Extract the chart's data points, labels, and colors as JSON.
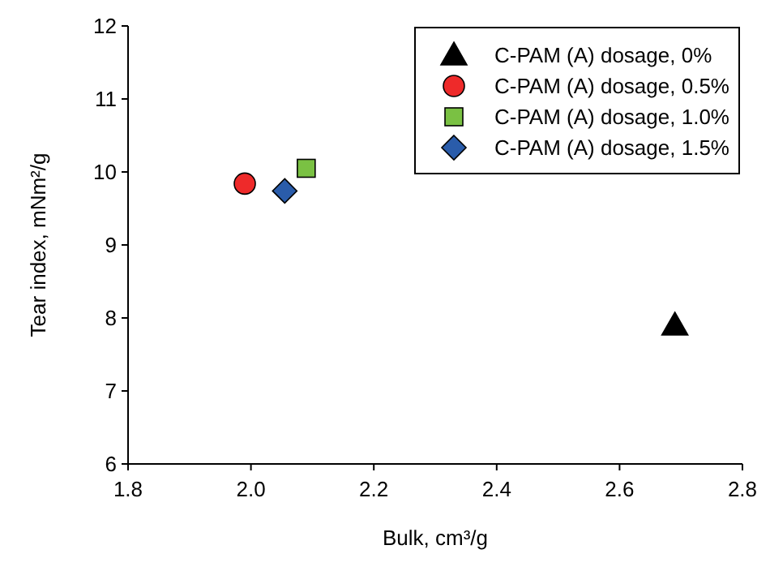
{
  "chart_data": {
    "type": "scatter",
    "xlabel": "Bulk, cm³/g",
    "ylabel": "Tear index, mNm²/g",
    "xlim": [
      1.8,
      2.8
    ],
    "xticks": [
      {
        "value": 1.8,
        "label": "1.8"
      },
      {
        "value": 2.0,
        "label": "2.0"
      },
      {
        "value": 2.2,
        "label": "2.2"
      },
      {
        "value": 2.4,
        "label": "2.4"
      },
      {
        "value": 2.6,
        "label": "2.6"
      },
      {
        "value": 2.8,
        "label": "2.8"
      }
    ],
    "ylim": [
      6,
      12
    ],
    "yticks": [
      6,
      7,
      8,
      9,
      10,
      11,
      12
    ],
    "grid": false,
    "legend": "top right",
    "series": [
      {
        "name": "C-PAM (A) dosage, 0%",
        "color": "#000000",
        "marker": "triangle",
        "x": [
          2.69
        ],
        "values": [
          7.9
        ]
      },
      {
        "name": "C-PAM (A) dosage, 0.5%",
        "color": "#ee2a2a",
        "marker": "circle",
        "x": [
          1.99
        ],
        "values": [
          9.84
        ]
      },
      {
        "name": "C-PAM (A) dosage, 1.0%",
        "color": "#7ac143",
        "marker": "square",
        "x": [
          2.09
        ],
        "values": [
          10.05
        ]
      },
      {
        "name": "C-PAM (A) dosage, 1.5%",
        "color": "#2a5caa",
        "marker": "diamond",
        "x": [
          2.055
        ],
        "values": [
          9.74
        ]
      }
    ]
  }
}
